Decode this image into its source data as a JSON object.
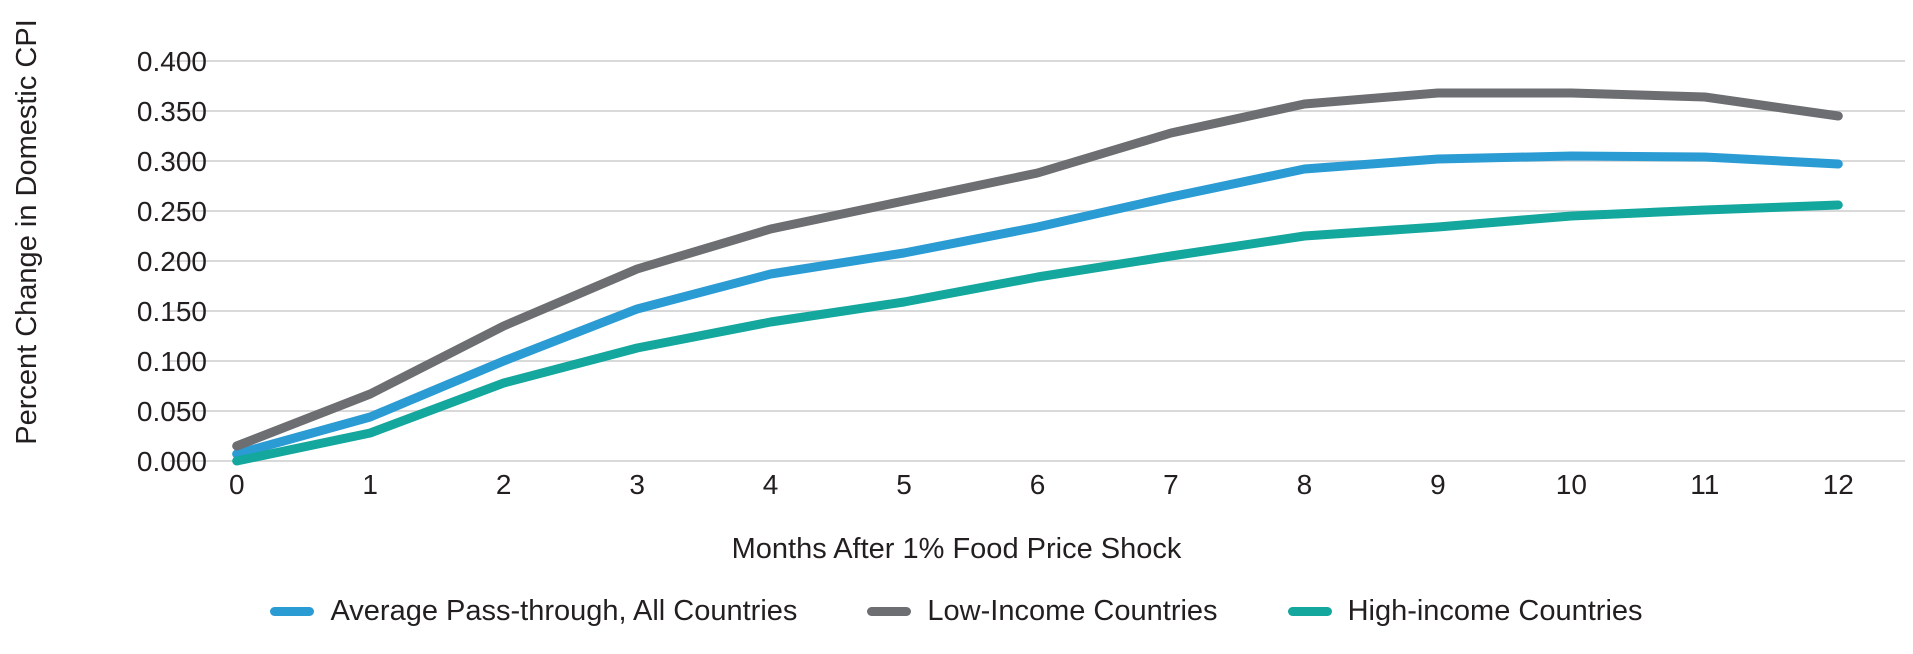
{
  "chart_data": {
    "type": "line",
    "xlabel": "Months After 1% Food Price Shock",
    "ylabel": "Percent Change in Domestic CPI",
    "categories": [
      "0",
      "1",
      "2",
      "3",
      "4",
      "5",
      "6",
      "7",
      "8",
      "9",
      "10",
      "11",
      "12"
    ],
    "y_tick_labels": [
      "0.400",
      "0.350",
      "0.300",
      "0.250",
      "0.200",
      "0.150",
      "0.100",
      "0.050",
      "0.000"
    ],
    "ylim": [
      0,
      0.4
    ],
    "grid": "horizontal",
    "gridline_color": "#D9D9D9",
    "legend_position": "bottom",
    "series": [
      {
        "name": "Average Pass-through, All Countries",
        "color": "#2B9BD4",
        "values": [
          0.007,
          0.044,
          0.1,
          0.152,
          0.187,
          0.208,
          0.234,
          0.264,
          0.292,
          0.302,
          0.305,
          0.304,
          0.297
        ]
      },
      {
        "name": "Low-Income Countries",
        "color": "#6D6E71",
        "values": [
          0.015,
          0.067,
          0.135,
          0.192,
          0.232,
          0.26,
          0.288,
          0.328,
          0.357,
          0.368,
          0.368,
          0.364,
          0.345
        ]
      },
      {
        "name": "High-income Countries",
        "color": "#13A79D",
        "values": [
          0.0,
          0.028,
          0.078,
          0.113,
          0.139,
          0.159,
          0.184,
          0.205,
          0.225,
          0.234,
          0.245,
          0.251,
          0.256
        ]
      }
    ]
  }
}
